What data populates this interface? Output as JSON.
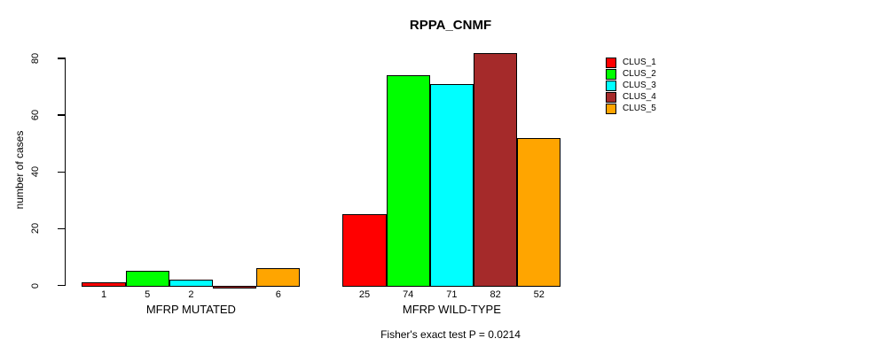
{
  "chart_data": {
    "type": "bar",
    "title": "RPPA_CNMF",
    "ylabel": "number of cases",
    "xlabel": "",
    "footer": "Fisher's exact test P = 0.0214",
    "categories": [
      "MFRP MUTATED",
      "MFRP WILD-TYPE"
    ],
    "series": [
      {
        "name": "CLUS_1",
        "color": "#FF0000",
        "values": [
          1,
          25
        ]
      },
      {
        "name": "CLUS_2",
        "color": "#00FF00",
        "values": [
          5,
          74
        ]
      },
      {
        "name": "CLUS_3",
        "color": "#00FFFF",
        "values": [
          2,
          71
        ]
      },
      {
        "name": "CLUS_4",
        "color": "#A52A2A",
        "values": [
          0,
          82
        ]
      },
      {
        "name": "CLUS_5",
        "color": "#FFA500",
        "values": [
          6,
          52
        ]
      }
    ],
    "ylim": [
      0,
      80
    ],
    "yticks": [
      0,
      20,
      40,
      60,
      80
    ],
    "grid": false,
    "bar_value_labels": true,
    "hide_zero_bar_labels": true,
    "legend_position": "right",
    "axis_color": "#000000",
    "bar_border_color": "#000000"
  }
}
